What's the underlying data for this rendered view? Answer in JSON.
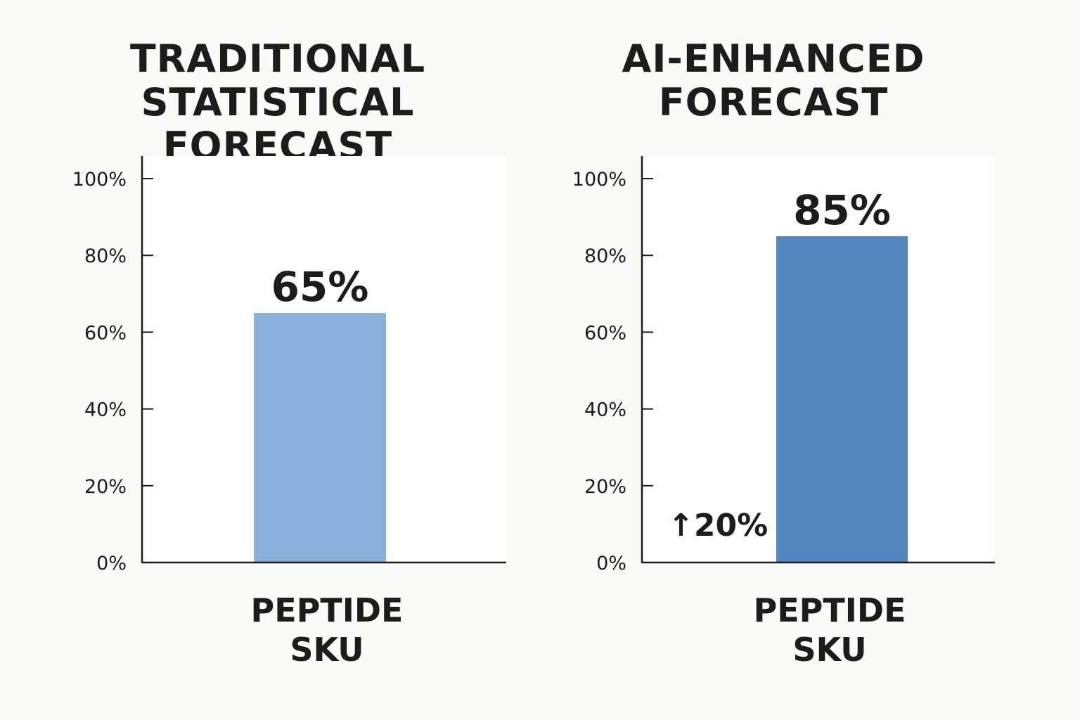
{
  "chart_data": [
    {
      "type": "bar",
      "title_lines": [
        "TRADITIONAL",
        "STATISTICAL FORECAST"
      ],
      "categories": [
        "PEPTIDE SKU"
      ],
      "category_label_lines": [
        "PEPTIDE",
        "SKU"
      ],
      "values": [
        65
      ],
      "value_labels": [
        "65%"
      ],
      "ylim": [
        0,
        100
      ],
      "yticks": [
        0,
        20,
        40,
        60,
        80,
        100
      ],
      "ytick_labels": [
        "0%",
        "20%",
        "40%",
        "60%",
        "80%",
        "100%"
      ],
      "bar_color": "#88b0db",
      "grid": false
    },
    {
      "type": "bar",
      "title_lines": [
        "AI-ENHANCED",
        "FORECAST"
      ],
      "categories": [
        "PEPTIDE SKU"
      ],
      "category_label_lines": [
        "PEPTIDE",
        "SKU"
      ],
      "values": [
        85
      ],
      "value_labels": [
        "85%"
      ],
      "ylim": [
        0,
        100
      ],
      "yticks": [
        0,
        20,
        40,
        60,
        80,
        100
      ],
      "ytick_labels": [
        "0%",
        "20%",
        "40%",
        "60%",
        "80%",
        "100%"
      ],
      "bar_color": "#5487c0",
      "grid": false,
      "annotation": "↑20%"
    }
  ]
}
